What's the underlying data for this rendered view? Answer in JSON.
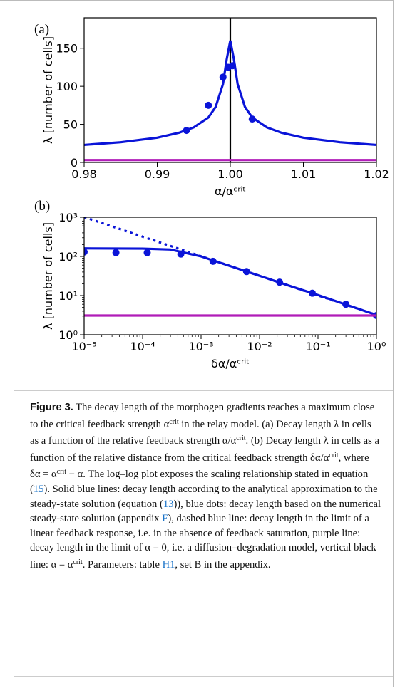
{
  "chart_data": [
    {
      "type": "line",
      "panel": "(a)",
      "x_label": "α/αᶜʳⁱᵗ",
      "y_label": "λ [number of cells]",
      "xlim": [
        0.98,
        1.02
      ],
      "ylim": [
        0,
        190
      ],
      "xticks": [
        0.98,
        0.99,
        {
          "value": 1.0,
          "label": "1.00"
        },
        1.01,
        1.02
      ],
      "yticks": [
        0,
        50,
        100,
        150
      ],
      "vlines": [
        {
          "value": 1.0,
          "color": "#000000"
        }
      ],
      "series": [
        {
          "style": "solid",
          "color": "#0a14d8",
          "x": [
            0.98,
            0.985,
            0.99,
            0.993,
            0.995,
            0.997,
            0.998,
            0.999,
            0.9995,
            1.0,
            1.0005,
            1.001,
            1.002,
            1.003,
            1.005,
            1.007,
            1.01,
            1.015,
            1.02
          ],
          "values": [
            23,
            26.5,
            32.5,
            39,
            46,
            59,
            73,
            103,
            135,
            160,
            135,
            103,
            73,
            59,
            46,
            39,
            32.5,
            26.5,
            23
          ]
        },
        {
          "style": "dots",
          "color": "#0a14d8",
          "x": [
            0.994,
            0.997,
            0.999,
            0.9997,
            1.0003,
            1.003
          ],
          "values": [
            42,
            75,
            112,
            125,
            127,
            57
          ]
        },
        {
          "style": "solid",
          "color": "#b01cb8",
          "x": [
            0.98,
            1.02
          ],
          "values": [
            3.1,
            3.1
          ]
        }
      ]
    },
    {
      "type": "line",
      "panel": "(b)",
      "x_label": "δα/αᶜʳⁱᵗ",
      "y_label": "λ [number of cells]",
      "xscale": "log",
      "yscale": "log",
      "xlim": [
        1e-05,
        1
      ],
      "ylim": [
        1,
        1000
      ],
      "xticks": [
        {
          "value": 1e-05,
          "label": "10⁻⁵"
        },
        {
          "value": 0.0001,
          "label": "10⁻⁴"
        },
        {
          "value": 0.001,
          "label": "10⁻³"
        },
        {
          "value": 0.01,
          "label": "10⁻²"
        },
        {
          "value": 0.1,
          "label": "10⁻¹"
        },
        {
          "value": 1,
          "label": "10⁰"
        }
      ],
      "yticks": [
        {
          "value": 1,
          "label": "10⁰"
        },
        {
          "value": 10,
          "label": "10¹"
        },
        {
          "value": 100,
          "label": "10²"
        },
        {
          "value": 1000,
          "label": "10³"
        }
      ],
      "series": [
        {
          "style": "dashed",
          "color": "#0a14d8",
          "x": [
            1e-05,
            0.0001,
            0.001,
            0.01,
            0.1,
            1
          ],
          "values": [
            1010,
            320,
            101,
            32,
            10.1,
            3.2
          ]
        },
        {
          "style": "solid",
          "color": "#0a14d8",
          "x": [
            1e-05,
            0.0001,
            0.0003,
            0.001,
            0.003,
            0.01,
            0.03,
            0.1,
            0.3,
            1
          ],
          "values": [
            160,
            158,
            150,
            100,
            58,
            32,
            18.5,
            10.3,
            5.9,
            3.2
          ]
        },
        {
          "style": "dots",
          "color": "#0a14d8",
          "x": [
            1e-05,
            3.5e-05,
            0.00012,
            0.00045,
            0.0016,
            0.006,
            0.022,
            0.08,
            0.3,
            1
          ],
          "values": [
            130,
            125,
            125,
            115,
            75,
            41,
            22,
            11.5,
            6,
            3.1
          ]
        },
        {
          "style": "solid",
          "color": "#b01cb8",
          "x": [
            1e-05,
            1
          ],
          "values": [
            3.1,
            3.1
          ]
        }
      ]
    }
  ],
  "caption": {
    "label": "Figure 3.",
    "parts": [
      " The decay length of the morphogen gradients reaches a maximum close to the critical feedback strength α",
      "crit",
      " in the relay model. (a) Decay length λ in cells as a function of the relative feedback strength α/α",
      "crit",
      ". (b) Decay length λ in cells as a function of the relative distance from the critical feedback strength δα/α",
      "crit",
      ", where δα = α",
      "crit",
      " − α. The log–log plot exposes the scaling relationship stated in equation (",
      "15",
      "). Solid blue lines: decay length according to the analytical approximation to the steady-state solution (equation (",
      "13",
      ")), blue dots: decay length based on the numerical steady-state solution (appendix ",
      "F",
      "), dashed blue line: decay length in the limit of a linear feedback response, i.e. in the absence of feedback saturation, purple line: decay length in the limit of α = 0, i.e. a diffusion–degradation model, vertical black line: α = α",
      "crit",
      ". Parameters: table ",
      "H1",
      ", set B in the appendix."
    ]
  }
}
